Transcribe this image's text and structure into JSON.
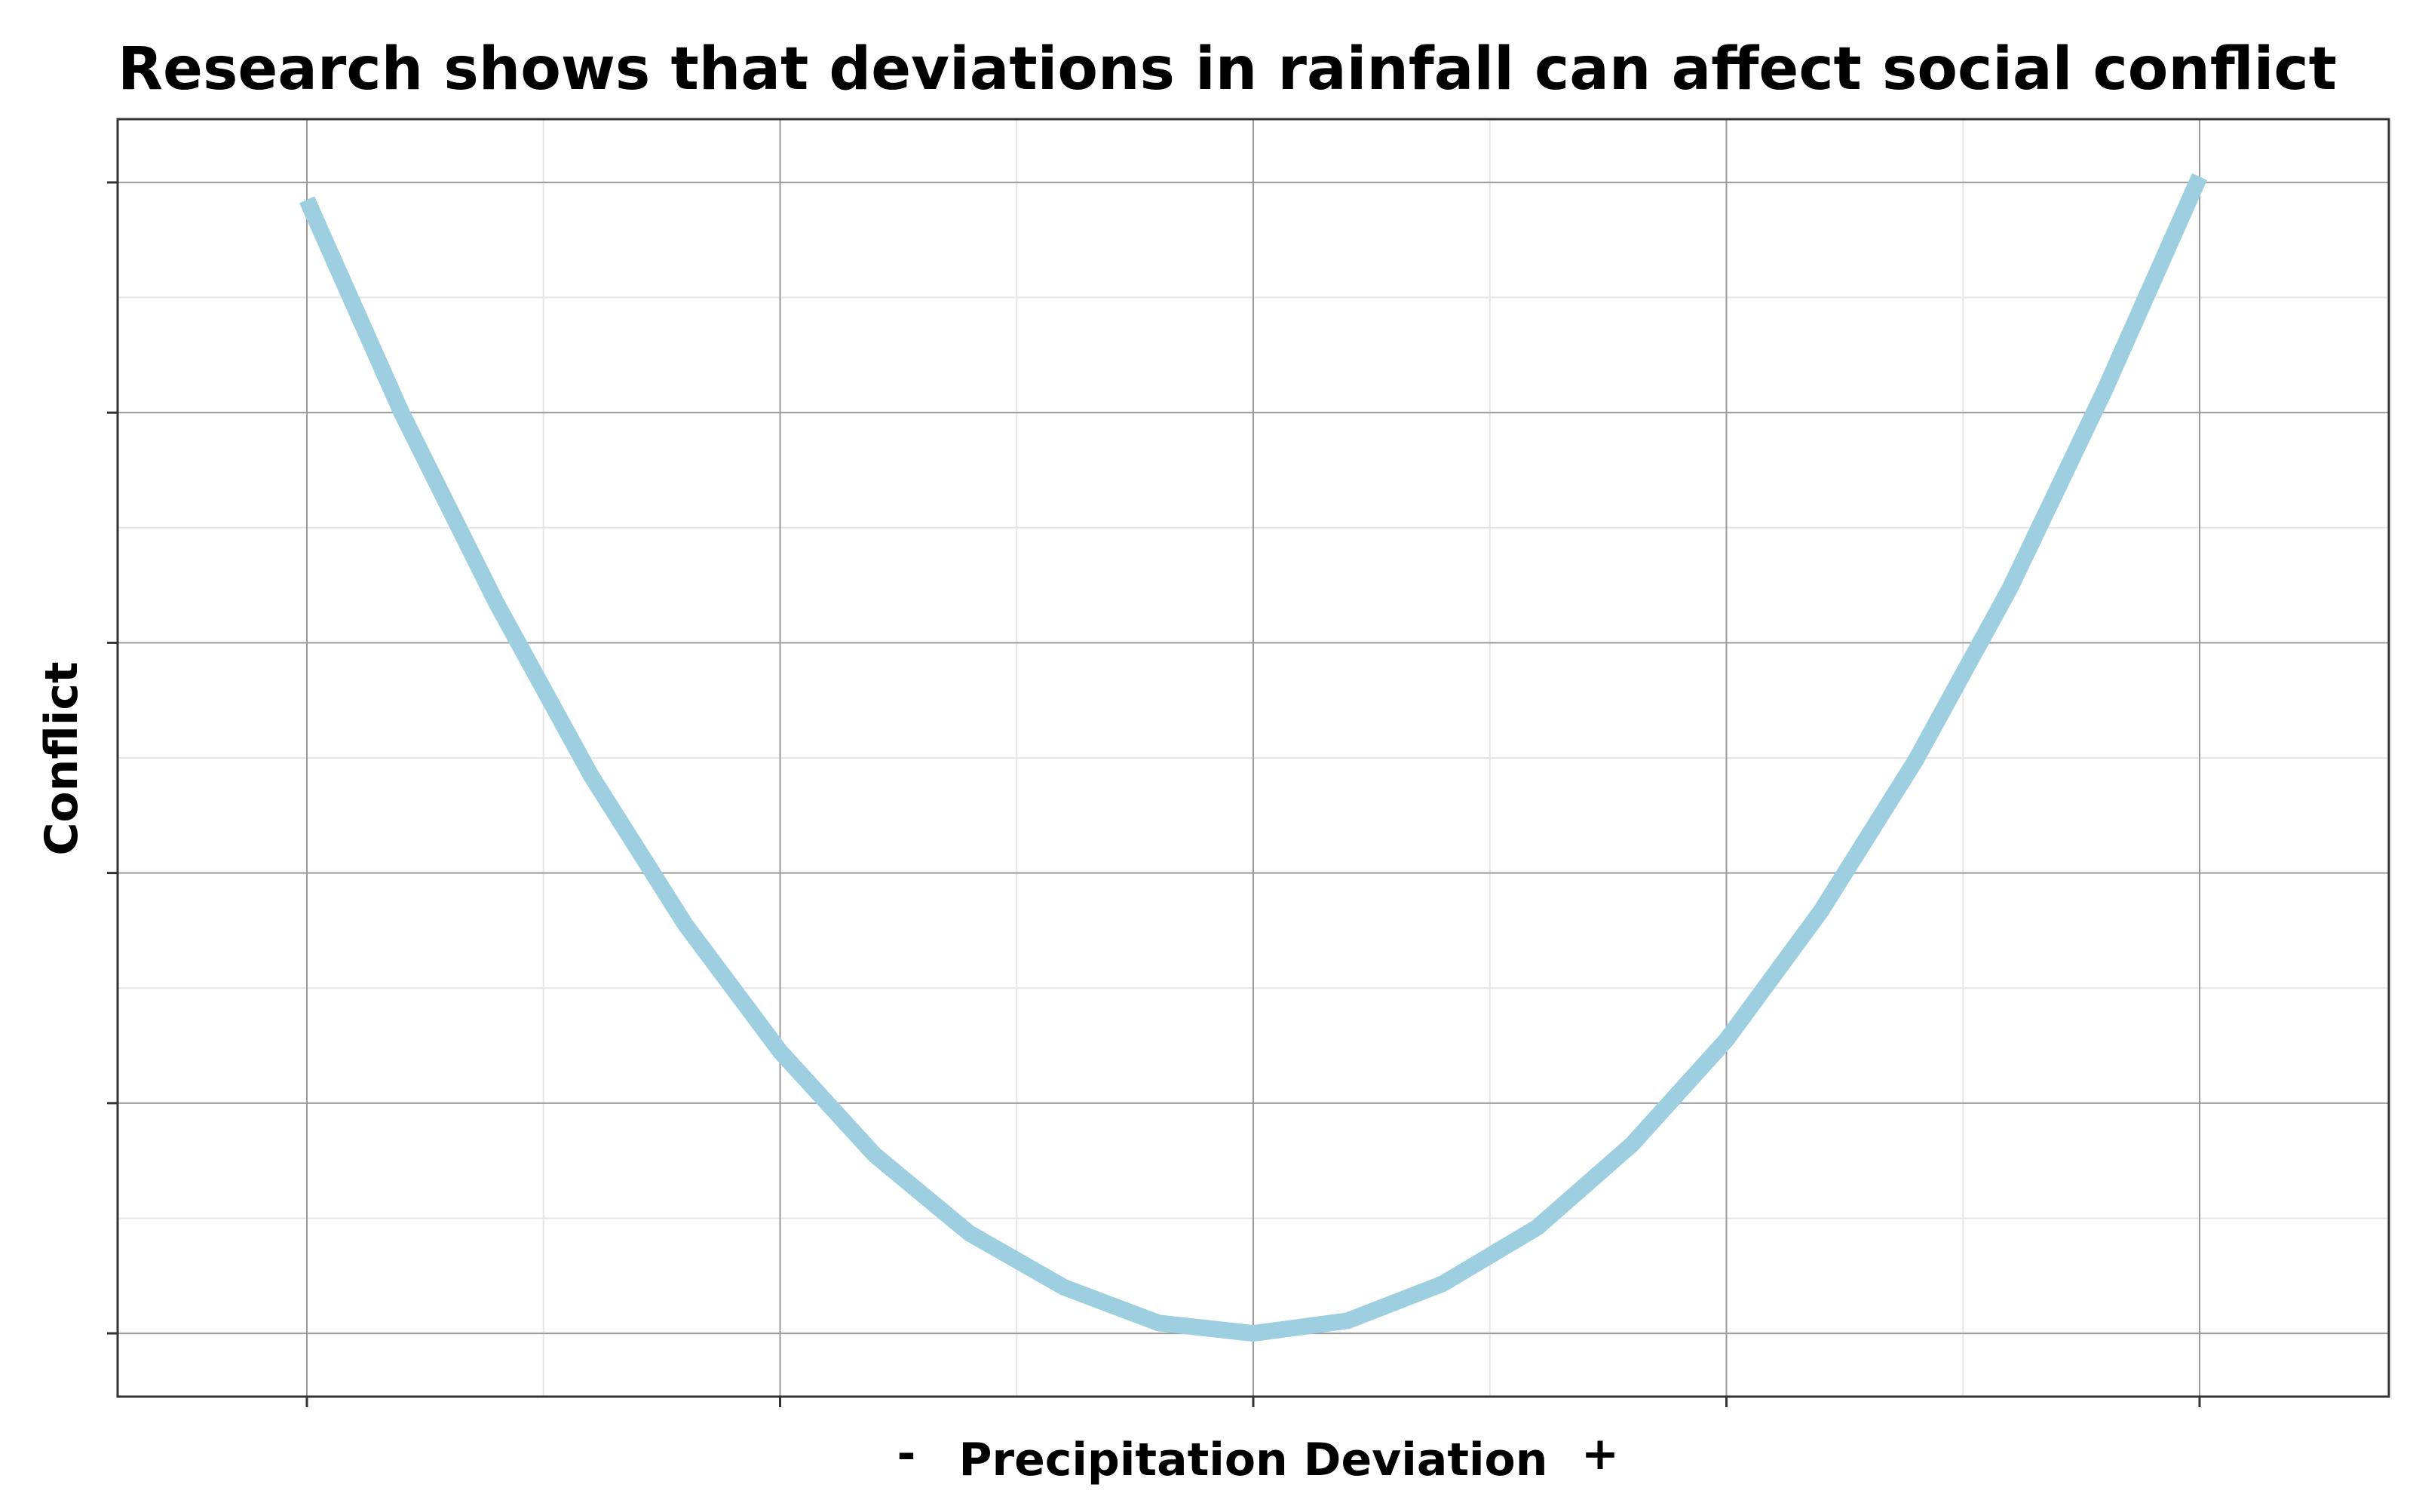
{
  "chart_data": {
    "type": "line",
    "title": "Research shows that deviations in rainfall can affect social conflict",
    "xlabel": "Precipitation Deviation",
    "ylabel": "Conflict",
    "x_negative_label": "-",
    "x_positive_label": "+",
    "xlim": [
      -1.2,
      1.2
    ],
    "ylim": [
      -0.055,
      1.055
    ],
    "x_major_ticks": [
      -1,
      -0.5,
      0,
      0.5,
      1
    ],
    "y_major_ticks": [
      0,
      0.2,
      0.4,
      0.6,
      0.8,
      1.0
    ],
    "tick_labels_shown": false,
    "grid": true,
    "legend": "none",
    "series": [
      {
        "color": "#9ecfe0",
        "x": [
          -1.0,
          -0.9,
          -0.8,
          -0.7,
          -0.6,
          -0.5,
          -0.4,
          -0.3,
          -0.2,
          -0.1,
          0.0,
          0.1,
          0.2,
          0.3,
          0.4,
          0.5,
          0.6,
          0.7,
          0.8,
          0.9,
          1.0
        ],
        "y": [
          0.985,
          0.8,
          0.635,
          0.485,
          0.355,
          0.245,
          0.155,
          0.087,
          0.04,
          0.009,
          0.0,
          0.011,
          0.043,
          0.092,
          0.164,
          0.255,
          0.367,
          0.498,
          0.648,
          0.82,
          1.005
        ]
      }
    ]
  },
  "colors": {
    "line": "#9ecfe0",
    "major_grid": "#9a9a9a",
    "minor_grid": "#e6e6e6",
    "panel_border": "#333333",
    "text": "#000000"
  }
}
